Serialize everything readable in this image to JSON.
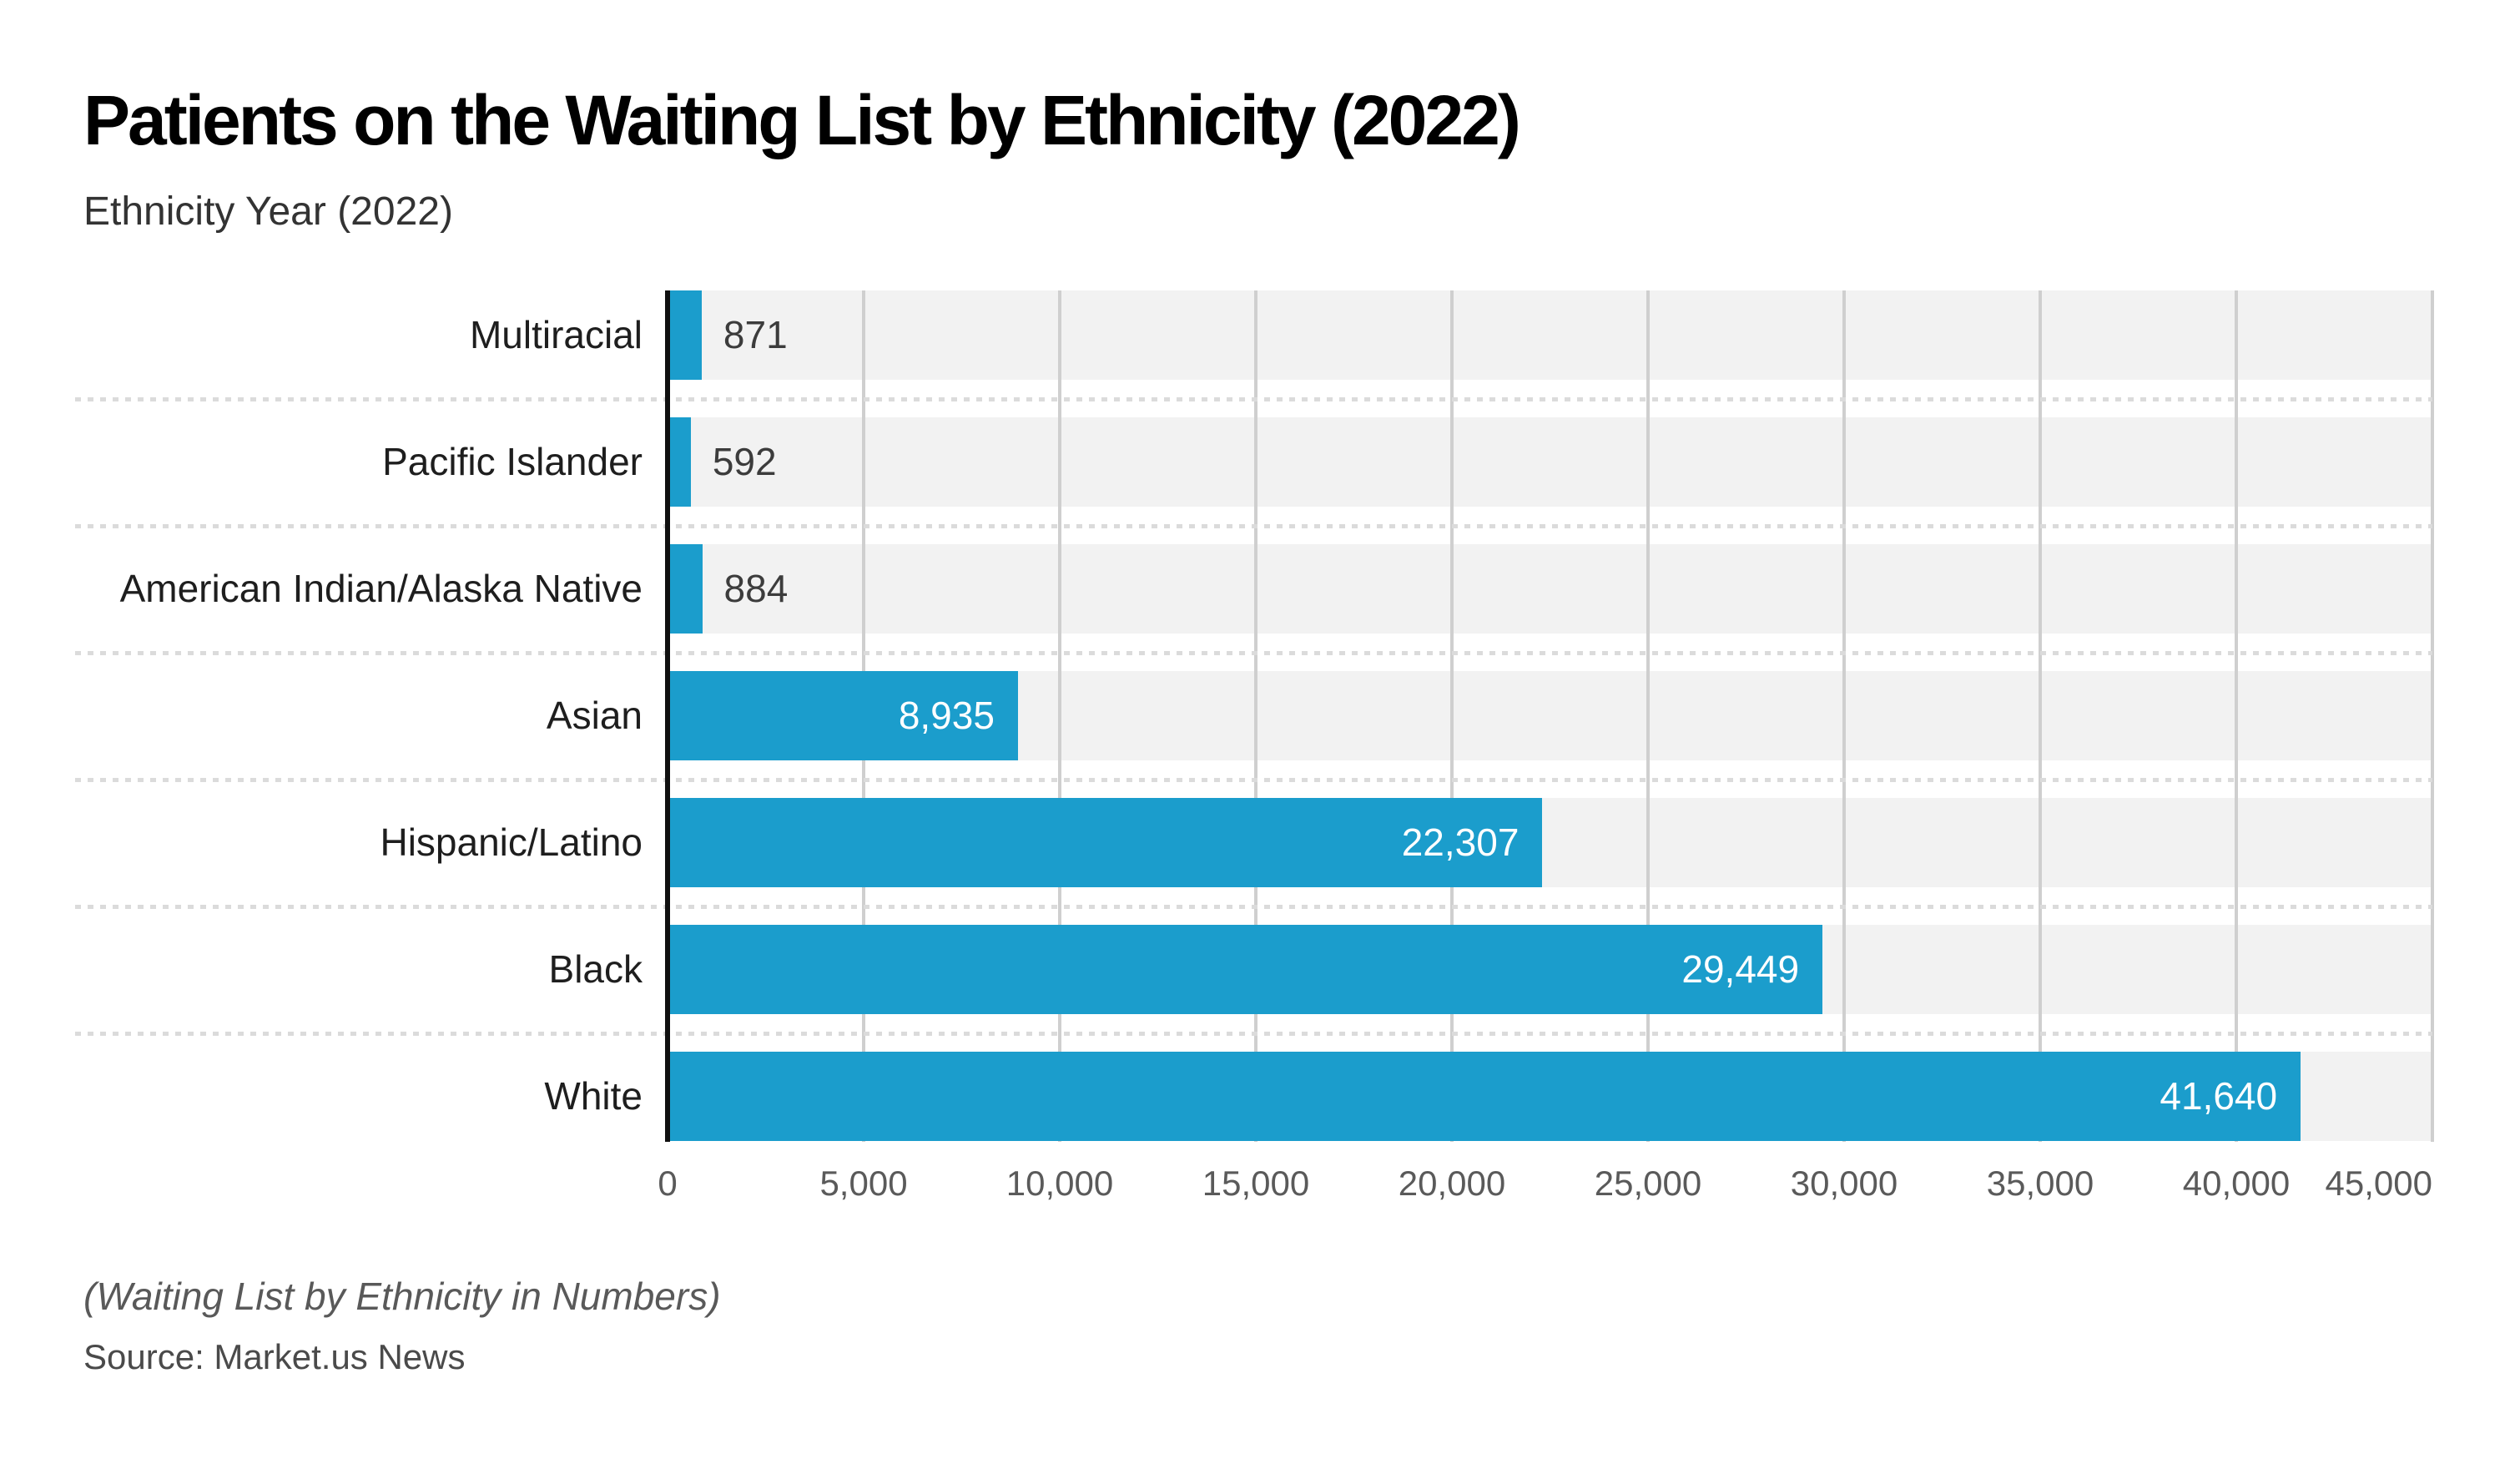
{
  "header": {
    "title": "Patients on the Waiting List by Ethnicity (2022)",
    "subtitle": "Ethnicity Year (2022)"
  },
  "footer": {
    "note": "(Waiting List by Ethnicity in Numbers)",
    "source": "Source: Market.us News"
  },
  "chart_data": {
    "type": "bar",
    "orientation": "horizontal",
    "title": "Patients on the Waiting List by Ethnicity (2022)",
    "subtitle": "Ethnicity Year (2022)",
    "categories": [
      "Multiracial",
      "Pacific Islander",
      "American Indian/Alaska Native",
      "Asian",
      "Hispanic/Latino",
      "Black",
      "White"
    ],
    "values": [
      871,
      592,
      884,
      8935,
      22307,
      29449,
      41640
    ],
    "value_labels": [
      "871",
      "592",
      "884",
      "8,935",
      "22,307",
      "29,449",
      "41,640"
    ],
    "xlim": [
      0,
      45000
    ],
    "xticks": [
      0,
      5000,
      10000,
      15000,
      20000,
      25000,
      30000,
      35000,
      40000,
      45000
    ],
    "xtick_labels": [
      "0",
      "5,000",
      "10,000",
      "15,000",
      "20,000",
      "25,000",
      "30,000",
      "35,000",
      "40,000",
      "45,000"
    ],
    "grid": true,
    "legend": "none",
    "inside_label_threshold": 3000,
    "colors": {
      "bar": "#1b9dcc",
      "track": "#f2f2f2",
      "gridline": "#cfcfcf",
      "axis_line": "#101010",
      "value_inside": "#ffffff",
      "value_outside": "#3c3c3c"
    }
  }
}
